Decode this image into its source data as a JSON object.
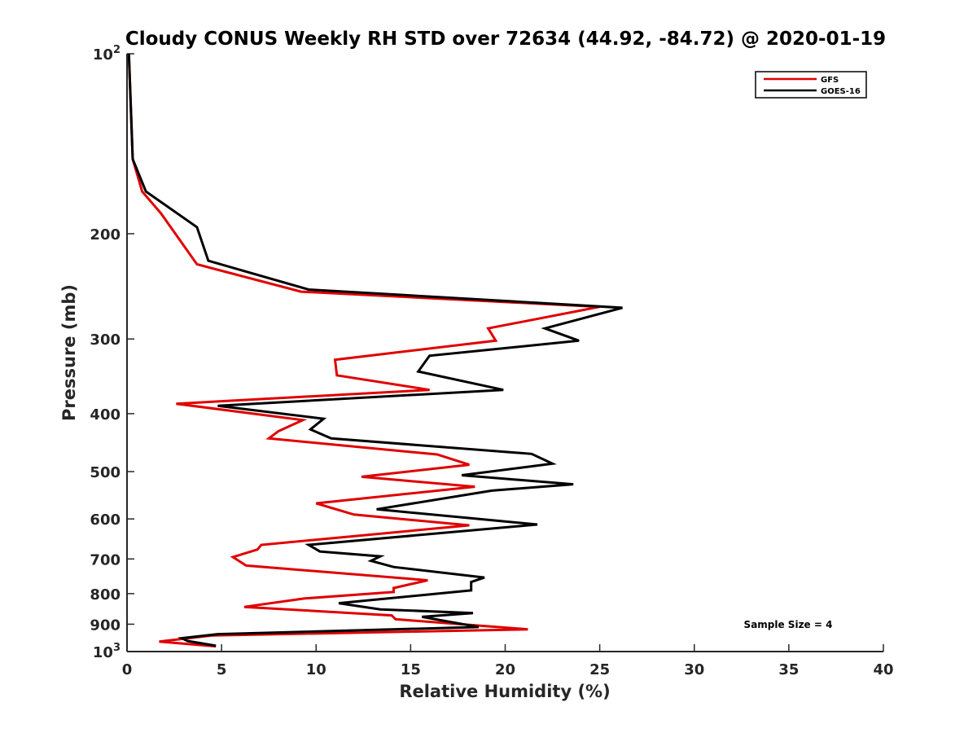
{
  "chart_data": {
    "type": "line",
    "title": "Cloudy CONUS Weekly RH STD over 72634 (44.92, -84.72) @ 2020-01-19",
    "xlabel": "Relative Humidity (%)",
    "ylabel": "Pressure (mb)",
    "xlim": [
      0,
      40
    ],
    "ylim": [
      100,
      1000
    ],
    "yscale": "log",
    "y_reversed": true,
    "grid": false,
    "legend_position": "top-right",
    "x_ticks": [
      "0",
      "5",
      "10",
      "15",
      "20",
      "25",
      "30",
      "35",
      "40"
    ],
    "y_ticks": [
      {
        "value": 100,
        "base": "10",
        "exp": "2"
      },
      {
        "value": 200,
        "label": "200"
      },
      {
        "value": 300,
        "label": "300"
      },
      {
        "value": 400,
        "label": "400"
      },
      {
        "value": 500,
        "label": "500"
      },
      {
        "value": 600,
        "label": "600"
      },
      {
        "value": 700,
        "label": "700"
      },
      {
        "value": 800,
        "label": "800"
      },
      {
        "value": 900,
        "label": "900"
      },
      {
        "value": 1000,
        "base": "10",
        "exp": "3"
      }
    ],
    "series": [
      {
        "name": "GFS",
        "color": "#e00000",
        "points": [
          [
            0.1,
            100
          ],
          [
            0.3,
            150
          ],
          [
            0.8,
            170
          ],
          [
            1.8,
            185
          ],
          [
            3.7,
            225
          ],
          [
            9.2,
            250
          ],
          [
            25.0,
            265
          ],
          [
            19.1,
            288
          ],
          [
            19.5,
            302
          ],
          [
            11.0,
            325
          ],
          [
            11.1,
            345
          ],
          [
            16.0,
            365
          ],
          [
            2.6,
            385
          ],
          [
            9.3,
            410
          ],
          [
            8.0,
            428
          ],
          [
            7.5,
            440
          ],
          [
            16.4,
            468
          ],
          [
            18.1,
            487
          ],
          [
            12.4,
            510
          ],
          [
            18.4,
            530
          ],
          [
            10.0,
            565
          ],
          [
            12.0,
            590
          ],
          [
            18.1,
            615
          ],
          [
            7.1,
            663
          ],
          [
            6.9,
            675
          ],
          [
            5.6,
            695
          ],
          [
            6.3,
            718
          ],
          [
            15.9,
            760
          ],
          [
            14.1,
            783
          ],
          [
            14.1,
            795
          ],
          [
            9.4,
            815
          ],
          [
            6.2,
            842
          ],
          [
            14.0,
            870
          ],
          [
            14.2,
            883
          ],
          [
            21.2,
            918
          ],
          [
            4.5,
            940
          ],
          [
            1.7,
            962
          ],
          [
            4.7,
            980
          ]
        ]
      },
      {
        "name": "GOES-16",
        "color": "#000000",
        "points": [
          [
            0.1,
            100
          ],
          [
            0.3,
            150
          ],
          [
            1.0,
            170
          ],
          [
            3.7,
            195
          ],
          [
            4.3,
            222
          ],
          [
            9.6,
            248
          ],
          [
            26.2,
            266
          ],
          [
            22.1,
            288
          ],
          [
            23.9,
            302
          ],
          [
            16.0,
            320
          ],
          [
            15.4,
            340
          ],
          [
            19.9,
            365
          ],
          [
            4.8,
            388
          ],
          [
            10.4,
            408
          ],
          [
            9.7,
            425
          ],
          [
            10.8,
            440
          ],
          [
            21.4,
            467
          ],
          [
            22.5,
            485
          ],
          [
            17.7,
            507
          ],
          [
            23.6,
            525
          ],
          [
            19.3,
            538
          ],
          [
            13.2,
            578
          ],
          [
            21.7,
            613
          ],
          [
            9.6,
            663
          ],
          [
            10.2,
            680
          ],
          [
            13.4,
            693
          ],
          [
            12.9,
            705
          ],
          [
            14.1,
            722
          ],
          [
            18.9,
            752
          ],
          [
            18.2,
            765
          ],
          [
            18.2,
            790
          ],
          [
            11.2,
            830
          ],
          [
            13.4,
            850
          ],
          [
            18.3,
            862
          ],
          [
            15.6,
            875
          ],
          [
            18.6,
            910
          ],
          [
            4.8,
            935
          ],
          [
            2.9,
            950
          ],
          [
            3.2,
            960
          ],
          [
            4.7,
            978
          ]
        ]
      }
    ],
    "annotations": [
      "Sample Size = 4"
    ]
  }
}
